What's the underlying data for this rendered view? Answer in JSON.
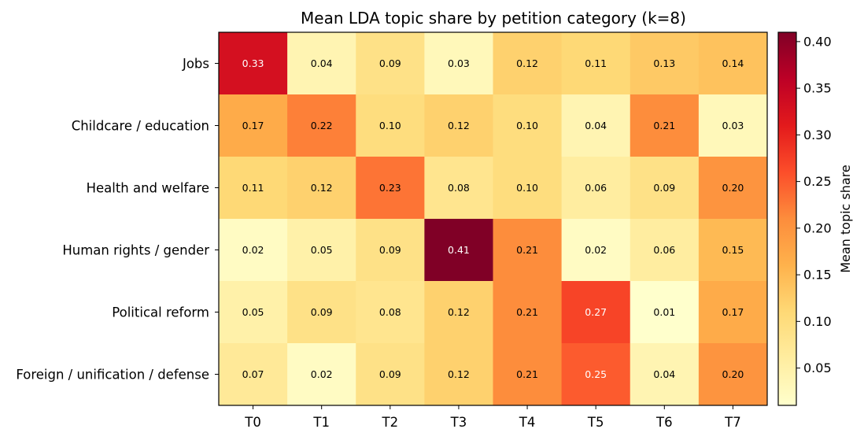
{
  "chart_data": {
    "type": "heatmap",
    "title": "Mean LDA topic share by petition category (k=8)",
    "columns": [
      "T0",
      "T1",
      "T2",
      "T3",
      "T4",
      "T5",
      "T6",
      "T7"
    ],
    "rows": [
      "Jobs",
      "Childcare / education",
      "Health and welfare",
      "Human rights / gender",
      "Political reform",
      "Foreign / unification / defense"
    ],
    "values": [
      [
        0.33,
        0.04,
        0.09,
        0.03,
        0.12,
        0.11,
        0.13,
        0.14
      ],
      [
        0.17,
        0.22,
        0.1,
        0.12,
        0.1,
        0.04,
        0.21,
        0.03
      ],
      [
        0.11,
        0.12,
        0.23,
        0.08,
        0.1,
        0.06,
        0.09,
        0.2
      ],
      [
        0.02,
        0.05,
        0.09,
        0.41,
        0.21,
        0.02,
        0.06,
        0.15
      ],
      [
        0.05,
        0.09,
        0.08,
        0.12,
        0.21,
        0.27,
        0.01,
        0.17
      ],
      [
        0.07,
        0.02,
        0.09,
        0.12,
        0.21,
        0.25,
        0.04,
        0.2
      ]
    ],
    "value_labels": [
      [
        "0.33",
        "0.04",
        "0.09",
        "0.03",
        "0.12",
        "0.11",
        "0.13",
        "0.14"
      ],
      [
        "0.17",
        "0.22",
        "0.10",
        "0.12",
        "0.10",
        "0.04",
        "0.21",
        "0.03"
      ],
      [
        "0.11",
        "0.12",
        "0.23",
        "0.08",
        "0.10",
        "0.06",
        "0.09",
        "0.20"
      ],
      [
        "0.02",
        "0.05",
        "0.09",
        "0.41",
        "0.21",
        "0.02",
        "0.06",
        "0.15"
      ],
      [
        "0.05",
        "0.09",
        "0.08",
        "0.12",
        "0.21",
        "0.27",
        "0.01",
        "0.17"
      ],
      [
        "0.07",
        "0.02",
        "0.09",
        "0.12",
        "0.21",
        "0.25",
        "0.04",
        "0.20"
      ]
    ],
    "colormap": "YlOrRd",
    "vmin": 0.01,
    "vmax": 0.41,
    "colorbar": {
      "label": "Mean topic share",
      "ticks": [
        0.05,
        0.1,
        0.15,
        0.2,
        0.25,
        0.3,
        0.35,
        0.4
      ],
      "tick_labels": [
        "0.05",
        "0.10",
        "0.15",
        "0.20",
        "0.25",
        "0.30",
        "0.35",
        "0.40"
      ],
      "position": "right"
    },
    "colors": [
      "#ffffcc",
      "#ffeda0",
      "#fed976",
      "#feb24c",
      "#fd8d3c",
      "#fc4e2a",
      "#e31a1c",
      "#bd0026",
      "#800026"
    ]
  }
}
